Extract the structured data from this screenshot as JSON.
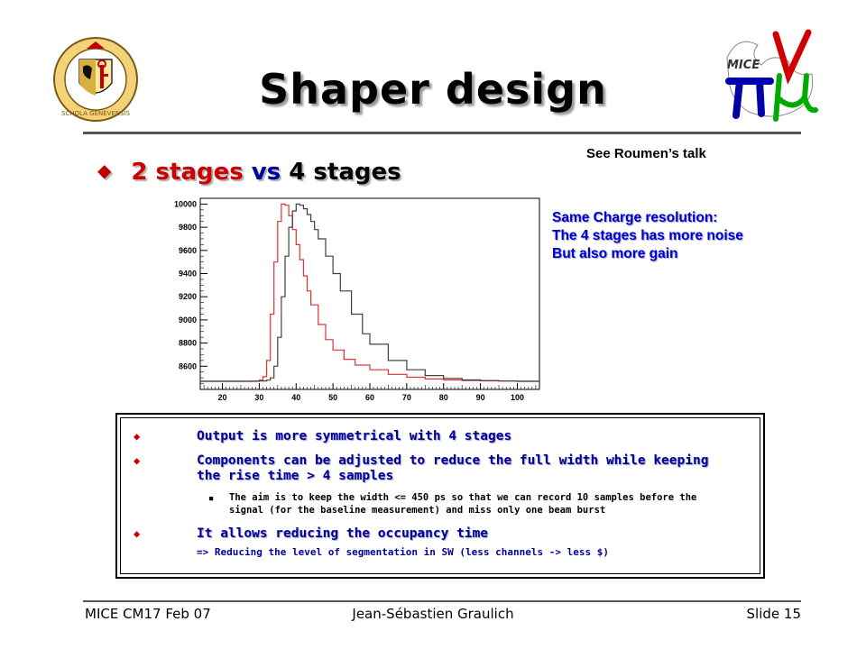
{
  "slide": {
    "title": "Shaper design",
    "reference_note": "See Roumen’s talk",
    "main_bullet": {
      "part1": "2 stages",
      "part2": "vs",
      "part3": "4 stages"
    },
    "notes": [
      "Same Charge resolution:",
      "The 4 stages has more noise",
      "But also more gain"
    ],
    "box": {
      "bullet1": "Output is more symmetrical with 4 stages",
      "bullet2": "Components can be adjusted to reduce the full width while keeping the rise time > 4 samples",
      "sub_bullet": "The aim is to keep the width <= 450 ps so that we can record 10 samples before the signal (for the baseline measurement) and miss only one beam burst",
      "bullet3": "It allows reducing the occupancy time",
      "bullet3_sub": "=> Reducing the level of segmentation in SW (less channels -> less $)"
    },
    "footer": {
      "left": "MICE CM17 Feb 07",
      "center": "Jean-Sébastien Graulich",
      "right": "Slide 15"
    },
    "logos": {
      "left_text": "SCHOLA GENEVENSIS",
      "right_text": "MICE"
    }
  },
  "colors": {
    "accent_red": "#cc0000",
    "text_blue": "#000099",
    "note_blue": "#0000cc",
    "series_2": "#e03030",
    "series_4": "#404040"
  },
  "chart_data": {
    "type": "line",
    "title": "",
    "xlabel": "",
    "ylabel": "",
    "xlim": [
      14,
      106
    ],
    "ylim": [
      8400,
      10050
    ],
    "x_ticks": [
      20,
      30,
      40,
      50,
      60,
      70,
      80,
      90,
      100
    ],
    "y_ticks": [
      8600,
      8800,
      9000,
      9200,
      9400,
      9600,
      9800,
      10000
    ],
    "series": [
      {
        "color": "#e03030",
        "x": [
          14,
          20,
          25,
          28,
          30,
          31,
          32,
          33,
          34,
          35,
          36,
          37,
          38,
          39,
          40,
          41,
          42,
          43,
          44,
          46,
          48,
          50,
          53,
          56,
          60,
          65,
          70,
          75,
          80,
          85,
          90,
          95,
          100,
          106
        ],
        "y": [
          8470,
          8470,
          8470,
          8472,
          8480,
          8510,
          8650,
          9050,
          9500,
          9850,
          10000,
          9990,
          9900,
          9780,
          9650,
          9520,
          9380,
          9250,
          9130,
          8960,
          8830,
          8740,
          8660,
          8610,
          8570,
          8530,
          8505,
          8490,
          8482,
          8477,
          8474,
          8472,
          8470,
          8470
        ]
      },
      {
        "color": "#404040",
        "x": [
          14,
          20,
          25,
          30,
          32,
          33,
          34,
          35,
          36,
          37,
          38,
          39,
          40,
          41,
          42,
          43,
          44,
          45,
          46,
          48,
          50,
          52,
          55,
          58,
          60,
          65,
          70,
          75,
          80,
          85,
          90,
          95,
          100,
          106
        ],
        "y": [
          8470,
          8470,
          8470,
          8473,
          8480,
          8500,
          8600,
          8850,
          9200,
          9550,
          9800,
          9940,
          10000,
          9990,
          9960,
          9910,
          9850,
          9780,
          9700,
          9550,
          9400,
          9250,
          9050,
          8880,
          8790,
          8650,
          8570,
          8520,
          8495,
          8482,
          8476,
          8472,
          8470,
          8470
        ]
      }
    ]
  }
}
